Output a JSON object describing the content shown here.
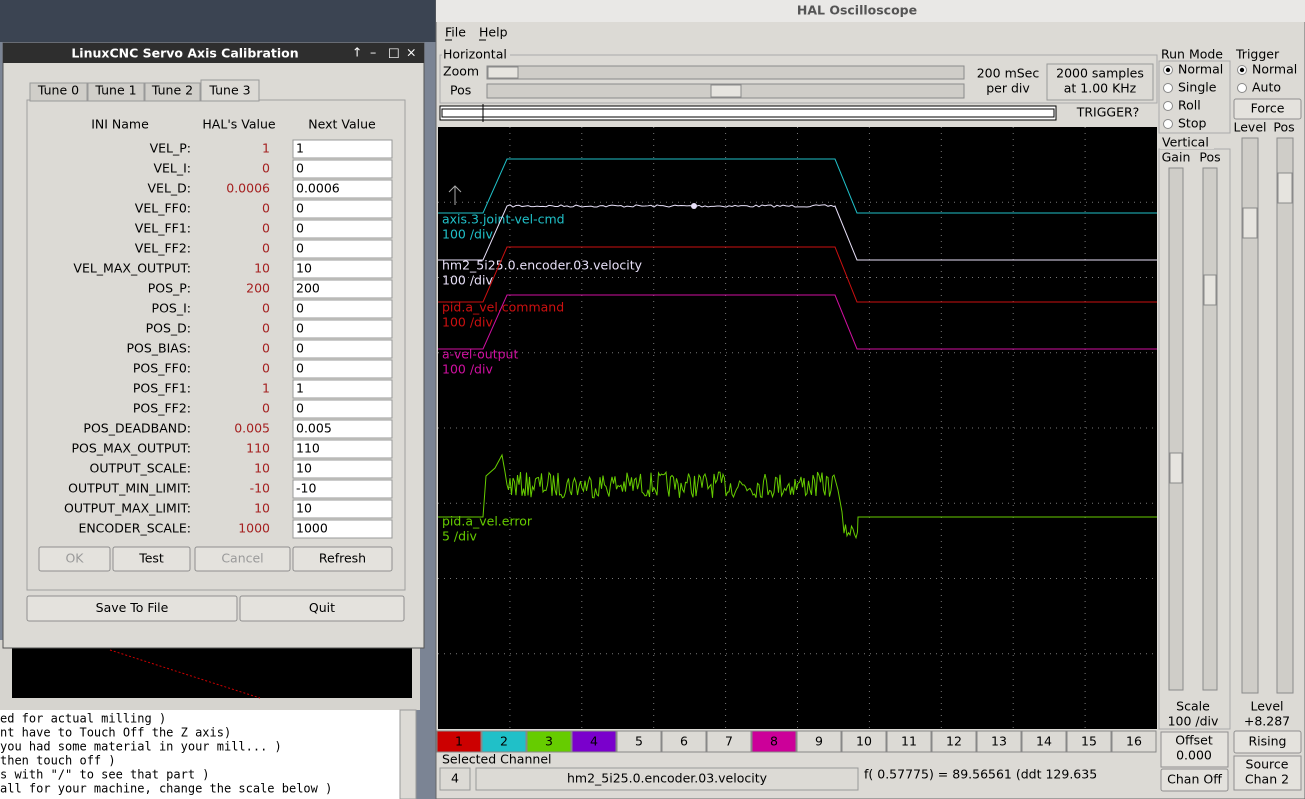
{
  "background": {
    "lines": [
      "ed for actual milling )",
      "nt have to Touch Off the Z axis)",
      "you had some material in your mill... )",
      "then touch off )",
      "s with \"/\" to see that part )",
      "all for your machine, change the scale below )"
    ]
  },
  "calibration": {
    "title": "LinuxCNC Servo Axis Calibration",
    "tabs": [
      "Tune 0",
      "Tune 1",
      "Tune 2",
      "Tune 3"
    ],
    "headers": [
      "INI Name",
      "HAL's Value",
      "Next Value"
    ],
    "rows": [
      [
        "VEL_P:",
        "1",
        "1"
      ],
      [
        "VEL_I:",
        "0",
        "0"
      ],
      [
        "VEL_D:",
        "0.0006",
        "0.0006"
      ],
      [
        "VEL_FF0:",
        "0",
        "0"
      ],
      [
        "VEL_FF1:",
        "0",
        "0"
      ],
      [
        "VEL_FF2:",
        "0",
        "0"
      ],
      [
        "VEL_MAX_OUTPUT:",
        "10",
        "10"
      ],
      [
        "POS_P:",
        "200",
        "200"
      ],
      [
        "POS_I:",
        "0",
        "0"
      ],
      [
        "POS_D:",
        "0",
        "0"
      ],
      [
        "POS_BIAS:",
        "0",
        "0"
      ],
      [
        "POS_FF0:",
        "0",
        "0"
      ],
      [
        "POS_FF1:",
        "1",
        "1"
      ],
      [
        "POS_FF2:",
        "0",
        "0"
      ],
      [
        "POS_DEADBAND:",
        "0.005",
        "0.005"
      ],
      [
        "POS_MAX_OUTPUT:",
        "110",
        "110"
      ],
      [
        "OUTPUT_SCALE:",
        "10",
        "10"
      ],
      [
        "OUTPUT_MIN_LIMIT:",
        "-10",
        "-10"
      ],
      [
        "OUTPUT_MAX_LIMIT:",
        "10",
        "10"
      ],
      [
        "ENCODER_SCALE:",
        "1000",
        "1000"
      ]
    ],
    "buttons": [
      "OK",
      "Test",
      "Cancel",
      "Refresh"
    ],
    "bottom_buttons": [
      "Save To File",
      "Quit"
    ]
  },
  "scope": {
    "title": "HAL Oscilloscope",
    "menu": [
      "File",
      "Help"
    ],
    "horizontal": {
      "title": "Horizontal",
      "zoom": "Zoom",
      "pos": "Pos",
      "rate": [
        "200 mSec",
        "per div"
      ],
      "samples": [
        "2000 samples",
        "at 1.00 KHz"
      ],
      "trigger_state": "TRIGGER?"
    },
    "run_mode": {
      "title": "Run Mode",
      "options": [
        "Normal",
        "Single",
        "Roll",
        "Stop"
      ]
    },
    "trigger": {
      "title": "Trigger",
      "options": [
        "Normal",
        "Auto"
      ],
      "force": "Force",
      "level": "Level",
      "pos": "Pos",
      "level_label": "Level",
      "level_value": "+8.287",
      "edge": "Rising",
      "source": [
        "Source",
        "Chan  2"
      ]
    },
    "vertical": {
      "title": "Vertical",
      "gain": "Gain",
      "pos": "Pos",
      "scale_label": "Scale",
      "scale": "100 /div",
      "offset": [
        "Offset",
        "0.000"
      ],
      "chan_off": "Chan Off"
    },
    "traces": [
      {
        "name": "axis.3.joint-vel-cmd",
        "scale": "100 /div",
        "color": "#20c0c8"
      },
      {
        "name": "hm2_5i25.0.encoder.03.velocity",
        "scale": "100 /div",
        "color": "#e8e0f8"
      },
      {
        "name": "pid.a_vel.command",
        "scale": "100 /div",
        "color": "#cc1010"
      },
      {
        "name": "a-vel-output",
        "scale": "100 /div",
        "color": "#d010a0"
      },
      {
        "name": "pid.a_vel.error",
        "scale": "5 /div",
        "color": "#66cc00"
      }
    ],
    "channels": [
      {
        "label": "1",
        "color": "#cc0000"
      },
      {
        "label": "2",
        "color": "#20c0c8"
      },
      {
        "label": "3",
        "color": "#66cc00"
      },
      {
        "label": "4",
        "color": "#7a00cc"
      },
      {
        "label": "5"
      },
      {
        "label": "6"
      },
      {
        "label": "7"
      },
      {
        "label": "8",
        "color": "#cc0099"
      },
      {
        "label": "9"
      },
      {
        "label": "10"
      },
      {
        "label": "11"
      },
      {
        "label": "12"
      },
      {
        "label": "13"
      },
      {
        "label": "14"
      },
      {
        "label": "15"
      },
      {
        "label": "16"
      }
    ],
    "selected": {
      "title": "Selected Channel",
      "number": "4",
      "name": "hm2_5i25.0.encoder.03.velocity",
      "readout": "f( 0.57775) =   89.56561 (ddt   129.635"
    }
  }
}
